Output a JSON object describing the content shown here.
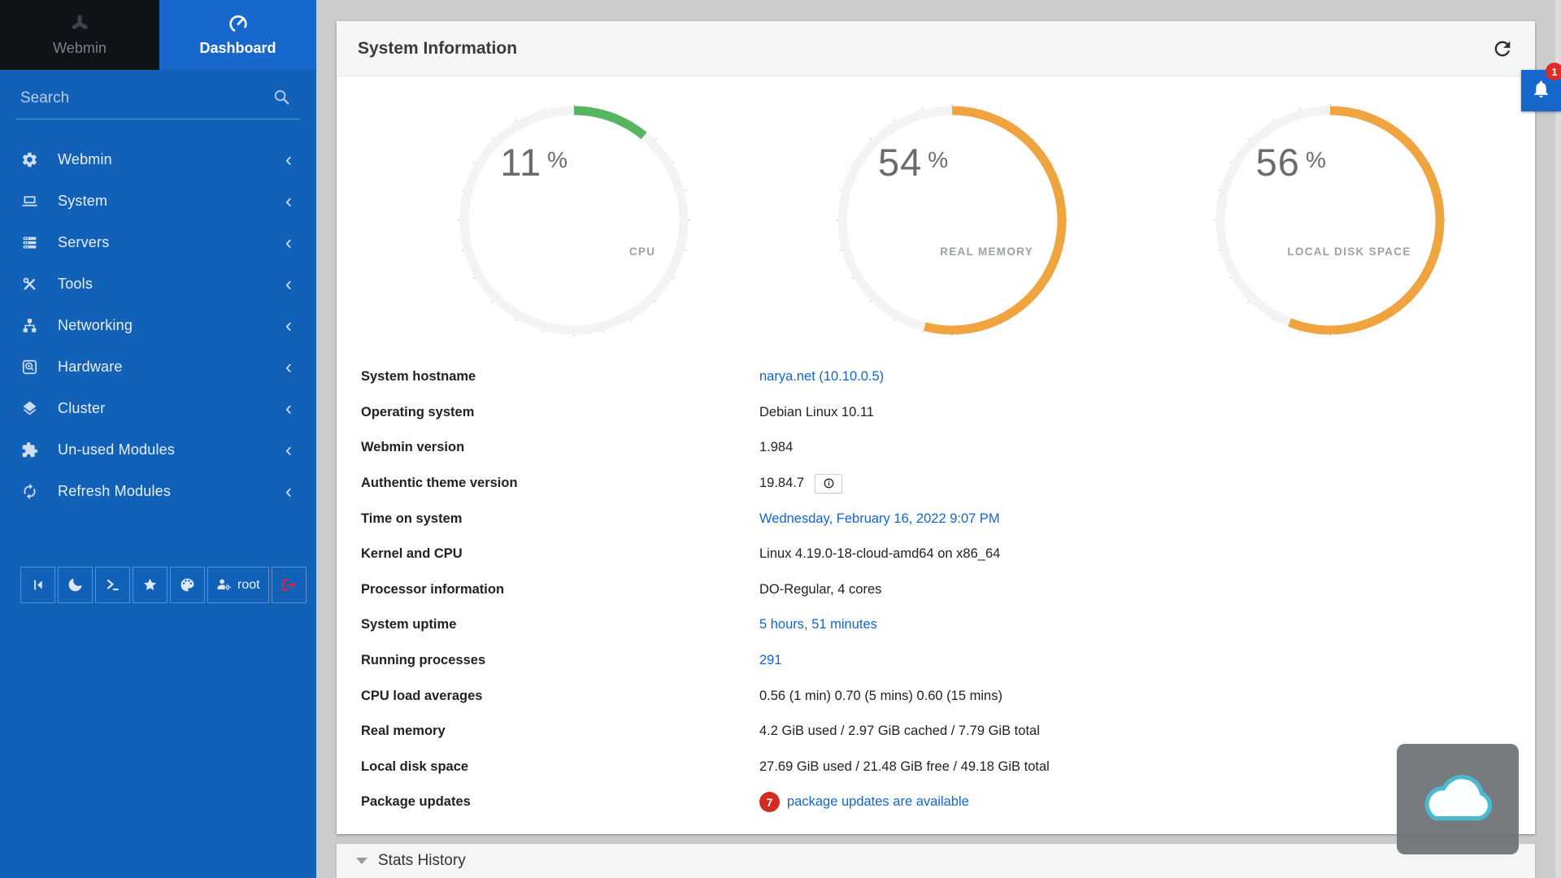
{
  "colors": {
    "sidebar_blue": "#1161b8",
    "active_tab_blue": "#1768cc",
    "gauge_green": "#57b45f",
    "gauge_orange": "#f0a440",
    "link_blue": "#1166d2",
    "badge_red": "#d42b20"
  },
  "sidebar": {
    "tabs": [
      {
        "label": "Webmin",
        "icon": "webmin-logo-icon",
        "active": false
      },
      {
        "label": "Dashboard",
        "icon": "dashboard-icon",
        "active": true
      }
    ],
    "search": {
      "placeholder": "Search"
    },
    "menu": [
      {
        "icon": "gear-icon",
        "label": "Webmin"
      },
      {
        "icon": "laptop-icon",
        "label": "System"
      },
      {
        "icon": "servers-icon",
        "label": "Servers"
      },
      {
        "icon": "tools-icon",
        "label": "Tools"
      },
      {
        "icon": "network-icon",
        "label": "Networking"
      },
      {
        "icon": "harddisk-icon",
        "label": "Hardware"
      },
      {
        "icon": "layers-icon",
        "label": "Cluster"
      },
      {
        "icon": "puzzle-icon",
        "label": "Un-used Modules"
      },
      {
        "icon": "refresh-icon",
        "label": "Refresh Modules"
      }
    ],
    "menu_chevron": "‹",
    "quickbar": [
      {
        "icon": "collapse-icon",
        "name": "collapse-sidebar-button"
      },
      {
        "icon": "moon-icon",
        "name": "night-mode-button"
      },
      {
        "icon": "terminal-icon",
        "name": "terminal-button"
      },
      {
        "icon": "star-icon",
        "name": "favorites-button"
      },
      {
        "icon": "palette-icon",
        "name": "theme-button"
      },
      {
        "icon": "user-gear-icon",
        "name": "user-menu-button",
        "label": "root"
      },
      {
        "icon": "logout-icon",
        "name": "logout-button",
        "red": true
      }
    ]
  },
  "header": {
    "title": "System Information"
  },
  "notifications": {
    "count": "1"
  },
  "gauges": [
    {
      "value": "11",
      "unit": "%",
      "label": "CPU",
      "color": "#57b45f",
      "percent": 11
    },
    {
      "value": "54",
      "unit": "%",
      "label": "REAL MEMORY",
      "color": "#f0a440",
      "percent": 54
    },
    {
      "value": "56",
      "unit": "%",
      "label": "LOCAL DISK SPACE",
      "color": "#f0a440",
      "percent": 56
    }
  ],
  "system_info": {
    "rows": [
      {
        "label": "System hostname",
        "value": "narya.net (10.10.0.5)",
        "link": true
      },
      {
        "label": "Operating system",
        "value": "Debian Linux 10.11"
      },
      {
        "label": "Webmin version",
        "value": "1.984"
      },
      {
        "label": "Authentic theme version",
        "value": "19.84.7",
        "info": true
      },
      {
        "label": "Time on system",
        "value": "Wednesday, February 16, 2022 9:07 PM",
        "link": true
      },
      {
        "label": "Kernel and CPU",
        "value": "Linux 4.19.0-18-cloud-amd64 on x86_64"
      },
      {
        "label": "Processor information",
        "value": "DO-Regular, 4 cores"
      },
      {
        "label": "System uptime",
        "value": "5 hours, 51 minutes",
        "link": true
      },
      {
        "label": "Running processes",
        "value": "291",
        "link": true
      },
      {
        "label": "CPU load averages",
        "value": "0.56 (1 min) 0.70 (5 mins) 0.60 (15 mins)"
      },
      {
        "label": "Real memory",
        "value": "4.2 GiB used / 2.97 GiB cached / 7.79 GiB total"
      },
      {
        "label": "Local disk space",
        "value": "27.69 GiB used / 21.48 GiB free / 49.18 GiB total"
      },
      {
        "label": "Package updates",
        "value": "package updates are available",
        "link": true,
        "badge": "7"
      }
    ]
  },
  "stats_history": {
    "title": "Stats History"
  }
}
